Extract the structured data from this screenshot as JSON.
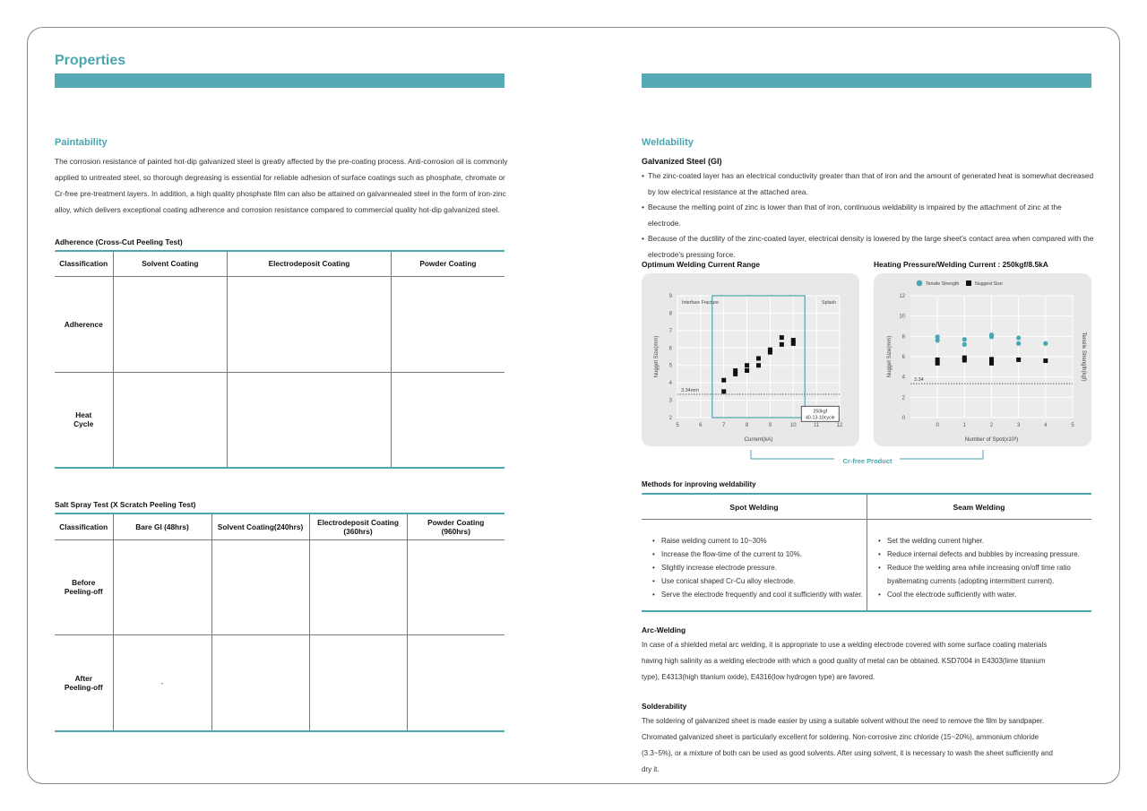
{
  "page_title": "Properties",
  "paintability": {
    "heading": "Paintability",
    "body": "The corrosion resistance of painted hot-dip galvanized steel is greatly affected by the pre-coating process. Anti-corrosion oil is commonly applied to untreated steel, so thorough degreasing is essential for reliable adhesion of surface coatings such as phosphate, chromate or Cr-free pre-treatment layers. In addition, a high quality phosphate film can also be attained on galvannealed steel in the form of iron-zinc alloy, which delivers exceptional coating adherence and corrosion resistance compared to commercial quality hot-dip galvanized steel."
  },
  "adherence": {
    "caption": "Adherence (Cross-Cut Peeling Test)",
    "headers": [
      "Classification",
      "Solvent Coating",
      "Electrodeposit Coating",
      "Powder Coating"
    ],
    "rows": [
      {
        "label": "Adherence"
      },
      {
        "label": "Heat Cycle"
      }
    ]
  },
  "salt_spray": {
    "caption": "Salt Spray Test (X Scratch Peeling Test)",
    "headers": [
      "Classification",
      "Bare GI (48hrs)",
      "Solvent Coating(240hrs)",
      "Electrodeposit Coating (360hrs)",
      "Powder Coating (960hrs)"
    ],
    "rows": [
      {
        "label": "Before Peeling-off"
      },
      {
        "label": "After Peeling-off",
        "empty_cell": "-"
      }
    ]
  },
  "weldability": {
    "heading": "Weldability",
    "subheading": "Galvanized Steel (GI)",
    "bullets": [
      "The zinc-coated layer has an electrical conductivity greater than that of iron and the amount of generated heat is somewhat decreased by low electrical resistance at the attached area.",
      "Because the melting point of zinc is lower than that of iron, continuous weldability is impaired by the attachment of zinc at the electrode.",
      "Because of the ductility of the zinc-coated layer, electrical density is lowered by the large sheet's contact area when compared with the electrode's pressing force."
    ],
    "bracket_label": "Cr-free Product"
  },
  "chart_data": [
    {
      "type": "scatter",
      "title": "Optimum Welding Current Range",
      "xlabel": "Current(kA)",
      "ylabel": "Nugget Size(mm)",
      "xlim": [
        5,
        12
      ],
      "ylim": [
        2,
        9
      ],
      "xticks": [
        5,
        6,
        7,
        8,
        9,
        10,
        11,
        12
      ],
      "yticks": [
        2,
        3,
        4,
        5,
        6,
        7,
        8,
        9
      ],
      "grid": true,
      "annotations": {
        "left_region": "Interface Fracture",
        "right_region": "Splash",
        "reference_label": "3.34mm",
        "reference_value": 3.34,
        "condition_line1": "250kgf",
        "condition_line2": "40-13-10cycle",
        "range_box_x": [
          6.5,
          10.5
        ]
      },
      "series": [
        {
          "marker": "square",
          "color": "#111111",
          "points": [
            [
              7,
              4.15
            ],
            [
              7,
              3.5
            ],
            [
              7.5,
              4.7
            ],
            [
              7.5,
              4.5
            ],
            [
              8,
              5.0
            ],
            [
              8,
              4.7
            ],
            [
              8.5,
              5.4
            ],
            [
              8.5,
              5.0
            ],
            [
              9,
              5.9
            ],
            [
              9,
              5.75
            ],
            [
              9.5,
              6.6
            ],
            [
              9.5,
              6.2
            ],
            [
              10,
              6.45
            ],
            [
              10,
              6.25
            ]
          ]
        }
      ]
    },
    {
      "type": "scatter",
      "title": "Heating Pressure/Welding Current : 250kgf/8.5kA",
      "xlabel": "Number of Spot(x10³)",
      "ylabel": "Nugget Size(mm)",
      "y2label": "Tensile Strength(kgf)",
      "xlim": [
        -1,
        5
      ],
      "ylim": [
        0,
        12
      ],
      "xticks": [
        0,
        1,
        2,
        3,
        4,
        5
      ],
      "yticks": [
        0,
        2,
        4,
        6,
        8,
        10,
        12
      ],
      "grid": true,
      "legend": "top-left",
      "annotations": {
        "reference_label": "3.34",
        "reference_value": 3.34
      },
      "series": [
        {
          "name": "Tensile Strength",
          "marker": "circle",
          "color": "#4aa6b0",
          "points": [
            [
              0,
              7.95
            ],
            [
              0,
              7.6
            ],
            [
              1,
              7.7
            ],
            [
              1,
              7.2
            ],
            [
              2,
              8.15
            ],
            [
              2,
              7.95
            ],
            [
              3,
              7.85
            ],
            [
              3,
              7.3
            ],
            [
              4,
              7.3
            ]
          ]
        },
        {
          "name": "Nuggest Size",
          "marker": "square",
          "color": "#111111",
          "points": [
            [
              0,
              5.7
            ],
            [
              0,
              5.35
            ],
            [
              1,
              5.9
            ],
            [
              1,
              5.65
            ],
            [
              2,
              5.75
            ],
            [
              2,
              5.35
            ],
            [
              3,
              5.7
            ],
            [
              4,
              5.6
            ]
          ]
        }
      ]
    }
  ],
  "methods": {
    "caption": "Methods for inproving weldability",
    "spot": {
      "header": "Spot Welding",
      "items": [
        "Raise welding current to 10~30%",
        "Increase the flow-time of the current to 10%.",
        "Slightly increase electrode pressure.",
        "Use conical shaped Cr-Cu alloy electrode.",
        "Serve the electrode frequently and cool it sufficiently with water."
      ]
    },
    "seam": {
      "header": "Seam Welding",
      "items": [
        "Set the welding current higher.",
        "Reduce internal defects and bubbles by increasing pressure.",
        "Reduce the welding area while increasing on/off time ratio byalternating currents (adopting intermittent current).",
        "Cool the electrode sufficiently with water."
      ]
    }
  },
  "arc": {
    "heading": "Arc-Welding",
    "body": "In case of a shielded metal arc welding, it is appropriate to use a welding electrode covered with some surface coating materials having high salinity as a welding electrode with which a good quality of metal can be obtained. KSD7004 in E4303(lime titanium type), E4313(high titanium oxide), E4316(low hydrogen type) are favored."
  },
  "solder": {
    "heading": "Solderability",
    "body": "The soldering of galvanized sheet is made easier by using a suitable solvent without the need to remove the film by sandpaper. Chromated galvanized sheet is particularly excellent for soldering. Non-corrosive zinc chloride (15~20%), ammonium chloride (3.3~5%), or a mixture of both can be used as good solvents. After using solvent, it is necessary to wash the sheet sufficiently and dry it."
  }
}
